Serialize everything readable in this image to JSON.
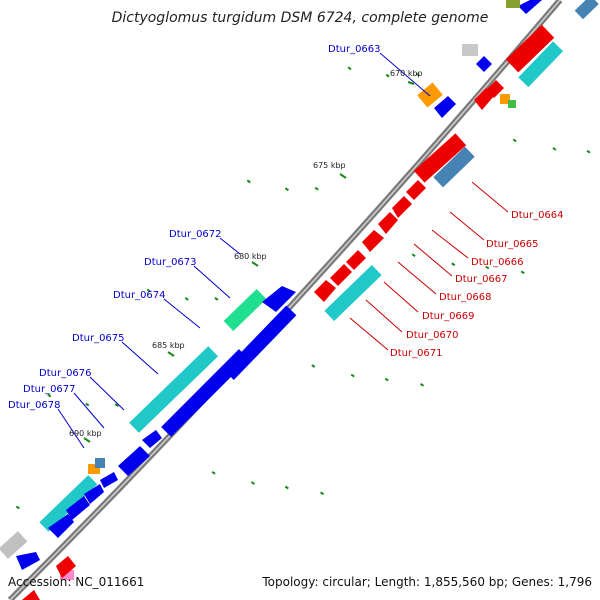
{
  "title": "Dictyoglomus turgidum DSM 6724, complete genome",
  "footer": {
    "accession": "Accession: NC_011661",
    "summary": "Topology: circular; Length: 1,855,560 bp; Genes: 1,796"
  },
  "ticks": [
    "670 kbp",
    "675 kbp",
    "680 kbp",
    "685 kbp",
    "690 kbp"
  ],
  "gene_labels_reverse": [
    "Dtur_0663",
    "Dtur_0672",
    "Dtur_0673",
    "Dtur_0674",
    "Dtur_0675",
    "Dtur_0676",
    "Dtur_0677",
    "Dtur_0678"
  ],
  "gene_labels_forward": [
    "Dtur_0664",
    "Dtur_0665",
    "Dtur_0666",
    "Dtur_0667",
    "Dtur_0668",
    "Dtur_0669",
    "Dtur_0670",
    "Dtur_0671"
  ],
  "colors": {
    "backbone": "#808080",
    "reverse_gene": "#0000ee",
    "forward_gene": "#ee0000",
    "cyan_feature": "#20c8c8",
    "steel_feature": "#4682b4",
    "green_feature": "#20e090",
    "orange_feature": "#ff9900",
    "gc_marks": "#1a8a1a",
    "blue_label": "#0000cc",
    "red_label": "#cc0000"
  }
}
